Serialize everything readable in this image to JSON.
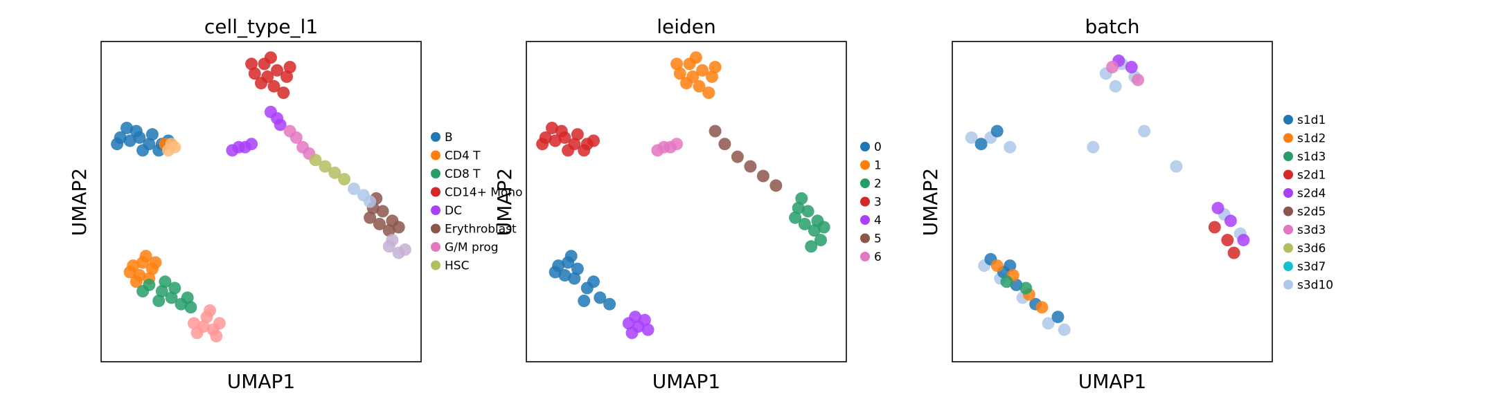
{
  "chart_data": [
    {
      "type": "scatter",
      "title": "cell_type_l1",
      "xlabel": "UMAP1",
      "ylabel": "UMAP2",
      "legend": "right",
      "grid": false,
      "ticks": false,
      "legend_entries": [
        {
          "label": "B",
          "color": "#1f77b4"
        },
        {
          "label": "CD4 T",
          "color": "#ff7f0e"
        },
        {
          "label": "CD8 T",
          "color": "#279e68"
        },
        {
          "label": "CD14+ Mono",
          "color": "#d62728"
        },
        {
          "label": "DC",
          "color": "#aa40fc"
        },
        {
          "label": "Erythroblast",
          "color": "#8c564b"
        },
        {
          "label": "G/M prog",
          "color": "#e377c2"
        },
        {
          "label": "HSC",
          "color": "#b5bd61"
        }
      ],
      "groups": [
        {
          "color": "#1f77b4",
          "points": [
            [
              0.06,
              0.7
            ],
            [
              0.09,
              0.69
            ],
            [
              0.12,
              0.7
            ],
            [
              0.15,
              0.68
            ],
            [
              0.19,
              0.68
            ],
            [
              0.08,
              0.73
            ],
            [
              0.13,
              0.66
            ],
            [
              0.18,
              0.66
            ],
            [
              0.05,
              0.68
            ],
            [
              0.11,
              0.72
            ],
            [
              0.16,
              0.71
            ],
            [
              0.21,
              0.69
            ]
          ]
        },
        {
          "color": "#ff7f0e",
          "points": [
            [
              0.1,
              0.3
            ],
            [
              0.13,
              0.31
            ],
            [
              0.16,
              0.29
            ],
            [
              0.12,
              0.27
            ],
            [
              0.15,
              0.26
            ],
            [
              0.09,
              0.28
            ],
            [
              0.14,
              0.33
            ],
            [
              0.11,
              0.25
            ],
            [
              0.17,
              0.31
            ],
            [
              0.2,
              0.68
            ]
          ]
        },
        {
          "color": "#279e68",
          "points": [
            [
              0.15,
              0.24
            ],
            [
              0.19,
              0.22
            ],
            [
              0.22,
              0.2
            ],
            [
              0.25,
              0.18
            ],
            [
              0.28,
              0.17
            ],
            [
              0.2,
              0.25
            ],
            [
              0.23,
              0.23
            ],
            [
              0.27,
              0.2
            ],
            [
              0.13,
              0.22
            ],
            [
              0.18,
              0.19
            ]
          ]
        },
        {
          "color": "#d62728",
          "points": [
            [
              0.48,
              0.9
            ],
            [
              0.51,
              0.93
            ],
            [
              0.55,
              0.91
            ],
            [
              0.58,
              0.89
            ],
            [
              0.5,
              0.87
            ],
            [
              0.54,
              0.86
            ],
            [
              0.57,
              0.84
            ],
            [
              0.47,
              0.93
            ],
            [
              0.53,
              0.95
            ],
            [
              0.59,
              0.92
            ],
            [
              0.52,
              0.89
            ]
          ]
        },
        {
          "color": "#aa40fc",
          "points": [
            [
              0.41,
              0.66
            ],
            [
              0.43,
              0.67
            ],
            [
              0.45,
              0.67
            ],
            [
              0.47,
              0.68
            ],
            [
              0.53,
              0.78
            ],
            [
              0.55,
              0.76
            ],
            [
              0.56,
              0.74
            ]
          ]
        },
        {
          "color": "#8c564b",
          "points": [
            [
              0.84,
              0.45
            ],
            [
              0.87,
              0.43
            ],
            [
              0.9,
              0.41
            ],
            [
              0.88,
              0.47
            ],
            [
              0.85,
              0.48
            ],
            [
              0.91,
              0.44
            ],
            [
              0.86,
              0.51
            ],
            [
              0.93,
              0.42
            ]
          ]
        },
        {
          "color": "#e377c2",
          "points": [
            [
              0.61,
              0.7
            ],
            [
              0.63,
              0.67
            ],
            [
              0.65,
              0.65
            ],
            [
              0.59,
              0.72
            ]
          ]
        },
        {
          "color": "#b5bd61",
          "points": [
            [
              0.67,
              0.63
            ],
            [
              0.7,
              0.61
            ],
            [
              0.73,
              0.59
            ],
            [
              0.76,
              0.57
            ]
          ]
        },
        {
          "color": "#aec7e8",
          "points": [
            [
              0.79,
              0.54
            ],
            [
              0.82,
              0.52
            ],
            [
              0.84,
              0.5
            ]
          ]
        },
        {
          "color": "#ff9896",
          "points": [
            [
              0.29,
              0.12
            ],
            [
              0.32,
              0.11
            ],
            [
              0.35,
              0.1
            ],
            [
              0.33,
              0.14
            ],
            [
              0.37,
              0.12
            ],
            [
              0.3,
              0.09
            ],
            [
              0.36,
              0.08
            ],
            [
              0.34,
              0.16
            ]
          ]
        },
        {
          "color": "#ffbb78",
          "points": [
            [
              0.21,
              0.66
            ],
            [
              0.22,
              0.68
            ],
            [
              0.23,
              0.67
            ]
          ]
        },
        {
          "color": "#c5b0d5",
          "points": [
            [
              0.9,
              0.36
            ],
            [
              0.93,
              0.34
            ],
            [
              0.95,
              0.35
            ],
            [
              0.91,
              0.38
            ]
          ]
        }
      ]
    },
    {
      "type": "scatter",
      "title": "leiden",
      "xlabel": "UMAP1",
      "ylabel": "UMAP2",
      "legend": "right",
      "grid": false,
      "ticks": false,
      "legend_entries": [
        {
          "label": "0",
          "color": "#1f77b4"
        },
        {
          "label": "1",
          "color": "#ff7f0e"
        },
        {
          "label": "2",
          "color": "#279e68"
        },
        {
          "label": "3",
          "color": "#d62728"
        },
        {
          "label": "4",
          "color": "#aa40fc"
        },
        {
          "label": "5",
          "color": "#8c564b"
        },
        {
          "label": "6",
          "color": "#e377c2"
        }
      ],
      "groups": [
        {
          "color": "#1f77b4",
          "points": [
            [
              0.1,
              0.3
            ],
            [
              0.13,
              0.31
            ],
            [
              0.16,
              0.29
            ],
            [
              0.12,
              0.27
            ],
            [
              0.15,
              0.26
            ],
            [
              0.19,
              0.23
            ],
            [
              0.23,
              0.2
            ],
            [
              0.26,
              0.18
            ],
            [
              0.09,
              0.28
            ],
            [
              0.14,
              0.33
            ],
            [
              0.18,
              0.19
            ],
            [
              0.21,
              0.25
            ]
          ]
        },
        {
          "color": "#ff7f0e",
          "points": [
            [
              0.48,
              0.9
            ],
            [
              0.51,
              0.93
            ],
            [
              0.55,
              0.91
            ],
            [
              0.58,
              0.89
            ],
            [
              0.5,
              0.87
            ],
            [
              0.54,
              0.86
            ],
            [
              0.57,
              0.84
            ],
            [
              0.47,
              0.93
            ],
            [
              0.53,
              0.95
            ],
            [
              0.59,
              0.92
            ],
            [
              0.52,
              0.89
            ]
          ]
        },
        {
          "color": "#279e68",
          "points": [
            [
              0.84,
              0.45
            ],
            [
              0.87,
              0.43
            ],
            [
              0.9,
              0.41
            ],
            [
              0.88,
              0.47
            ],
            [
              0.85,
              0.48
            ],
            [
              0.91,
              0.44
            ],
            [
              0.86,
              0.51
            ],
            [
              0.93,
              0.42
            ],
            [
              0.89,
              0.36
            ],
            [
              0.92,
              0.38
            ]
          ]
        },
        {
          "color": "#d62728",
          "points": [
            [
              0.06,
              0.7
            ],
            [
              0.09,
              0.69
            ],
            [
              0.12,
              0.7
            ],
            [
              0.15,
              0.68
            ],
            [
              0.19,
              0.68
            ],
            [
              0.08,
              0.73
            ],
            [
              0.13,
              0.66
            ],
            [
              0.18,
              0.66
            ],
            [
              0.05,
              0.68
            ],
            [
              0.11,
              0.72
            ],
            [
              0.16,
              0.71
            ],
            [
              0.21,
              0.69
            ]
          ]
        },
        {
          "color": "#aa40fc",
          "points": [
            [
              0.32,
              0.12
            ],
            [
              0.35,
              0.11
            ],
            [
              0.38,
              0.1
            ],
            [
              0.34,
              0.14
            ],
            [
              0.37,
              0.13
            ],
            [
              0.33,
              0.09
            ]
          ]
        },
        {
          "color": "#8c564b",
          "points": [
            [
              0.59,
              0.72
            ],
            [
              0.62,
              0.68
            ],
            [
              0.66,
              0.64
            ],
            [
              0.7,
              0.61
            ],
            [
              0.74,
              0.58
            ],
            [
              0.78,
              0.55
            ]
          ]
        },
        {
          "color": "#e377c2",
          "points": [
            [
              0.41,
              0.66
            ],
            [
              0.43,
              0.67
            ],
            [
              0.45,
              0.67
            ],
            [
              0.47,
              0.68
            ]
          ]
        }
      ]
    },
    {
      "type": "scatter",
      "title": "batch",
      "xlabel": "UMAP1",
      "ylabel": "UMAP2",
      "legend": "right",
      "grid": false,
      "ticks": false,
      "legend_entries": [
        {
          "label": "s1d1",
          "color": "#1f77b4"
        },
        {
          "label": "s1d2",
          "color": "#ff7f0e"
        },
        {
          "label": "s1d3",
          "color": "#279e68"
        },
        {
          "label": "s2d1",
          "color": "#d62728"
        },
        {
          "label": "s2d4",
          "color": "#aa40fc"
        },
        {
          "label": "s2d5",
          "color": "#8c564b"
        },
        {
          "label": "s3d3",
          "color": "#e377c2"
        },
        {
          "label": "s3d6",
          "color": "#b5bd61"
        },
        {
          "label": "s3d7",
          "color": "#17becf"
        },
        {
          "label": "s3d10",
          "color": "#aec7e8"
        }
      ],
      "groups": [
        {
          "color": "#aec7e8",
          "points": [
            [
              0.48,
              0.9
            ],
            [
              0.53,
              0.93
            ],
            [
              0.57,
              0.89
            ],
            [
              0.51,
              0.86
            ],
            [
              0.06,
              0.7
            ],
            [
              0.12,
              0.7
            ],
            [
              0.18,
              0.67
            ],
            [
              0.1,
              0.3
            ],
            [
              0.15,
              0.26
            ],
            [
              0.22,
              0.2
            ],
            [
              0.3,
              0.12
            ],
            [
              0.35,
              0.1
            ],
            [
              0.6,
              0.72
            ],
            [
              0.7,
              0.61
            ],
            [
              0.85,
              0.46
            ],
            [
              0.9,
              0.4
            ],
            [
              0.44,
              0.67
            ]
          ]
        },
        {
          "color": "#1f77b4",
          "points": [
            [
              0.12,
              0.32
            ],
            [
              0.16,
              0.28
            ],
            [
              0.2,
              0.24
            ],
            [
              0.26,
              0.18
            ],
            [
              0.09,
              0.68
            ],
            [
              0.14,
              0.72
            ],
            [
              0.33,
              0.14
            ],
            [
              0.18,
              0.3
            ]
          ]
        },
        {
          "color": "#ff7f0e",
          "points": [
            [
              0.14,
              0.3
            ],
            [
              0.24,
              0.21
            ],
            [
              0.28,
              0.17
            ],
            [
              0.19,
              0.27
            ]
          ]
        },
        {
          "color": "#aa40fc",
          "points": [
            [
              0.83,
              0.48
            ],
            [
              0.87,
              0.44
            ],
            [
              0.91,
              0.38
            ],
            [
              0.52,
              0.94
            ],
            [
              0.56,
              0.92
            ]
          ]
        },
        {
          "color": "#d62728",
          "points": [
            [
              0.82,
              0.42
            ],
            [
              0.86,
              0.38
            ],
            [
              0.88,
              0.34
            ]
          ]
        },
        {
          "color": "#279e68",
          "points": [
            [
              0.17,
              0.25
            ],
            [
              0.23,
              0.23
            ]
          ]
        },
        {
          "color": "#e377c2",
          "points": [
            [
              0.5,
              0.92
            ],
            [
              0.58,
              0.88
            ]
          ]
        }
      ]
    }
  ]
}
